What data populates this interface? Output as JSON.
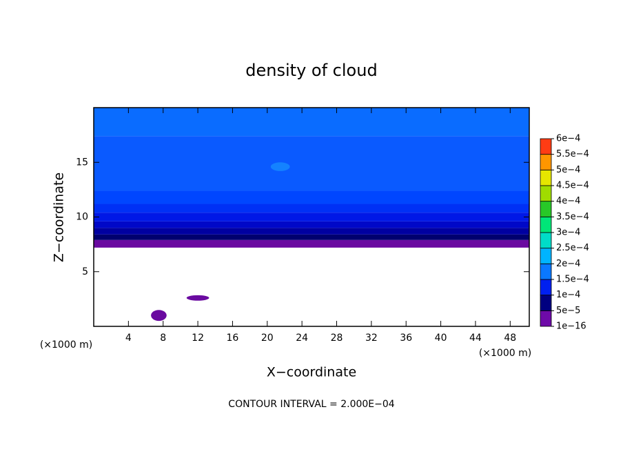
{
  "chart_data": {
    "type": "contour",
    "title": "density of cloud",
    "xlabel": "X−coordinate",
    "ylabel": "Z−coordinate",
    "x_unit": "(×1000 m)",
    "y_unit": "(×1000 m)",
    "footer": "CONTOUR INTERVAL = 2.000E−04",
    "xlim": [
      0,
      50.2
    ],
    "ylim": [
      0,
      20
    ],
    "xticks": [
      4,
      8,
      12,
      16,
      20,
      24,
      28,
      32,
      36,
      40,
      44,
      48
    ],
    "yticks": [
      5,
      10,
      15
    ],
    "colorbar": {
      "levels": [
        {
          "value": 1e-16,
          "label": "1e−16"
        },
        {
          "value": 5e-05,
          "label": "5e−5"
        },
        {
          "value": 0.0001,
          "label": "1e−4"
        },
        {
          "value": 0.00015,
          "label": "1.5e−4"
        },
        {
          "value": 0.0002,
          "label": "2e−4"
        },
        {
          "value": 0.00025,
          "label": "2.5e−4"
        },
        {
          "value": 0.0003,
          "label": "3e−4"
        },
        {
          "value": 0.00035,
          "label": "3.5e−4"
        },
        {
          "value": 0.0004,
          "label": "4e−4"
        },
        {
          "value": 0.00045,
          "label": "4.5e−4"
        },
        {
          "value": 0.0005,
          "label": "5e−4"
        },
        {
          "value": 0.00055,
          "label": "5.5e−4"
        },
        {
          "value": 0.0006,
          "label": "6e−4"
        }
      ],
      "colors": [
        "#6e0aa8",
        "#000080",
        "#0020f0",
        "#0a78ff",
        "#00b4ff",
        "#00dcc8",
        "#00e678",
        "#28c828",
        "#a0dc00",
        "#e6e600",
        "#ff9600",
        "#ff3c14"
      ]
    },
    "bands": [
      {
        "zmin": 7.2,
        "zmax": 7.9,
        "color": "#6a0aa0"
      },
      {
        "zmin": 7.9,
        "zmax": 8.4,
        "color": "#00006e"
      },
      {
        "zmin": 8.4,
        "zmax": 9.0,
        "color": "#0000a0"
      },
      {
        "zmin": 9.0,
        "zmax": 9.6,
        "color": "#0008c8"
      },
      {
        "zmin": 9.6,
        "zmax": 10.4,
        "color": "#0018e6"
      },
      {
        "zmin": 10.4,
        "zmax": 11.2,
        "color": "#0030f5"
      },
      {
        "zmin": 11.2,
        "zmax": 12.4,
        "color": "#0046ff"
      },
      {
        "zmin": 12.4,
        "zmax": 17.4,
        "color": "#0a5aff"
      },
      {
        "zmin": 17.4,
        "zmax": 20,
        "color": "#0a6cff"
      }
    ],
    "patches": [
      {
        "cx": 21.5,
        "cz": 14.6,
        "rx": 1.1,
        "rz": 0.4,
        "color": "#1482ff"
      },
      {
        "cx": 7.5,
        "cz": 1.0,
        "rx": 0.9,
        "rz": 0.5,
        "color": "#6a0aa0"
      },
      {
        "cx": 12.0,
        "cz": 2.6,
        "rx": 1.3,
        "rz": 0.25,
        "color": "#6a0aa0"
      }
    ]
  }
}
